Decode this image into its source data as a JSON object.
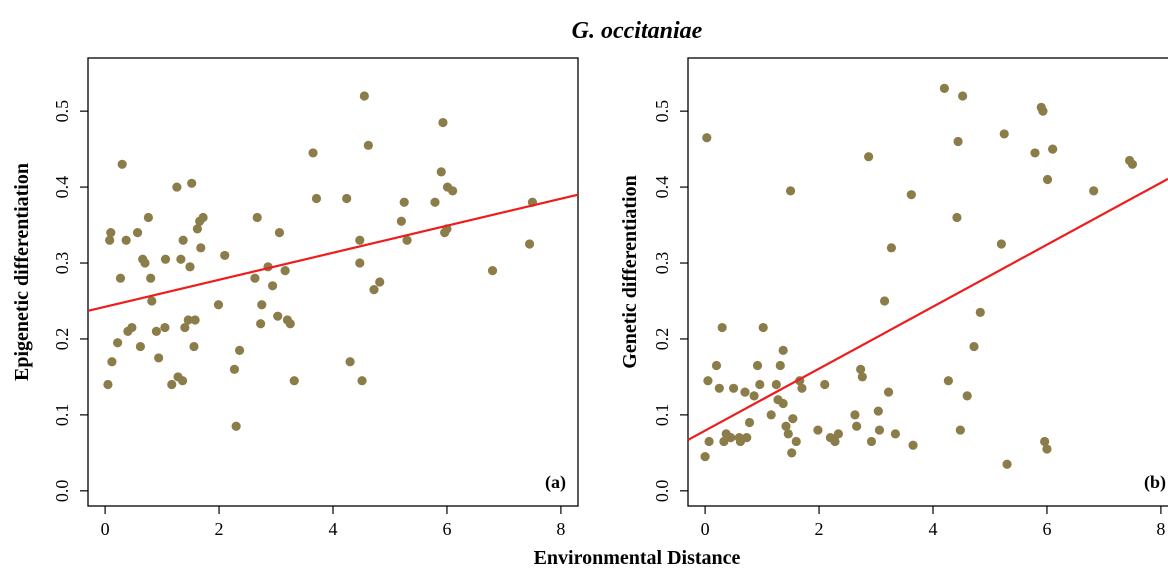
{
  "figure": {
    "title": "G. occitaniae",
    "xlabel": "Environmental Distance",
    "point_color": "#8b7d4a",
    "line_color": "#ee1c1c"
  },
  "chart_data": [
    {
      "type": "scatter",
      "tag": "(a)",
      "ylabel": "Epigenetic differentiation",
      "xlim": [
        -0.3,
        8.3
      ],
      "ylim": [
        -0.02,
        0.57
      ],
      "xticks": [
        "0",
        "2",
        "4",
        "6",
        "8"
      ],
      "yticks": [
        "0.0",
        "0.1",
        "0.2",
        "0.3",
        "0.4",
        "0.5"
      ],
      "regression": {
        "x0": -0.3,
        "y0": 0.237,
        "x1": 8.3,
        "y1": 0.39
      },
      "points": [
        [
          0.05,
          0.14
        ],
        [
          0.08,
          0.33
        ],
        [
          0.1,
          0.34
        ],
        [
          0.12,
          0.17
        ],
        [
          0.22,
          0.195
        ],
        [
          0.27,
          0.28
        ],
        [
          0.3,
          0.43
        ],
        [
          0.37,
          0.33
        ],
        [
          0.4,
          0.21
        ],
        [
          0.47,
          0.215
        ],
        [
          0.57,
          0.34
        ],
        [
          0.62,
          0.19
        ],
        [
          0.66,
          0.305
        ],
        [
          0.7,
          0.3
        ],
        [
          0.76,
          0.36
        ],
        [
          0.8,
          0.28
        ],
        [
          0.82,
          0.25
        ],
        [
          0.9,
          0.21
        ],
        [
          0.94,
          0.175
        ],
        [
          1.05,
          0.215
        ],
        [
          1.06,
          0.305
        ],
        [
          1.17,
          0.14
        ],
        [
          1.26,
          0.4
        ],
        [
          1.28,
          0.15
        ],
        [
          1.33,
          0.305
        ],
        [
          1.37,
          0.33
        ],
        [
          1.36,
          0.145
        ],
        [
          1.4,
          0.215
        ],
        [
          1.46,
          0.225
        ],
        [
          1.49,
          0.295
        ],
        [
          1.52,
          0.405
        ],
        [
          1.56,
          0.19
        ],
        [
          1.58,
          0.225
        ],
        [
          1.62,
          0.345
        ],
        [
          1.66,
          0.355
        ],
        [
          1.68,
          0.32
        ],
        [
          1.72,
          0.36
        ],
        [
          1.99,
          0.245
        ],
        [
          2.1,
          0.31
        ],
        [
          2.27,
          0.16
        ],
        [
          2.3,
          0.085
        ],
        [
          2.36,
          0.185
        ],
        [
          2.63,
          0.28
        ],
        [
          2.67,
          0.36
        ],
        [
          2.73,
          0.22
        ],
        [
          2.75,
          0.245
        ],
        [
          2.86,
          0.295
        ],
        [
          2.94,
          0.27
        ],
        [
          3.03,
          0.23
        ],
        [
          3.06,
          0.34
        ],
        [
          3.16,
          0.29
        ],
        [
          3.2,
          0.225
        ],
        [
          3.25,
          0.22
        ],
        [
          3.32,
          0.145
        ],
        [
          3.65,
          0.445
        ],
        [
          3.71,
          0.385
        ],
        [
          4.24,
          0.385
        ],
        [
          4.3,
          0.17
        ],
        [
          4.47,
          0.3
        ],
        [
          4.47,
          0.33
        ],
        [
          4.51,
          0.145
        ],
        [
          4.55,
          0.52
        ],
        [
          4.62,
          0.455
        ],
        [
          4.72,
          0.265
        ],
        [
          4.82,
          0.275
        ],
        [
          5.2,
          0.355
        ],
        [
          5.25,
          0.38
        ],
        [
          5.3,
          0.33
        ],
        [
          5.79,
          0.38
        ],
        [
          5.9,
          0.42
        ],
        [
          5.93,
          0.485
        ],
        [
          5.96,
          0.34
        ],
        [
          6.0,
          0.345
        ],
        [
          6.01,
          0.4
        ],
        [
          6.1,
          0.395
        ],
        [
          6.8,
          0.29
        ],
        [
          7.45,
          0.325
        ],
        [
          7.5,
          0.38
        ]
      ]
    },
    {
      "type": "scatter",
      "tag": "(b)",
      "ylabel": "Genetic differentiation",
      "xlim": [
        -0.3,
        8.3
      ],
      "ylim": [
        -0.02,
        0.57
      ],
      "xticks": [
        "0",
        "2",
        "4",
        "6",
        "8"
      ],
      "yticks": [
        "0.0",
        "0.1",
        "0.2",
        "0.3",
        "0.4",
        "0.5"
      ],
      "regression": {
        "x0": -0.3,
        "y0": 0.067,
        "x1": 8.3,
        "y1": 0.418
      },
      "points": [
        [
          0.0,
          0.045
        ],
        [
          0.03,
          0.465
        ],
        [
          0.05,
          0.145
        ],
        [
          0.07,
          0.065
        ],
        [
          0.2,
          0.165
        ],
        [
          0.25,
          0.135
        ],
        [
          0.3,
          0.215
        ],
        [
          0.33,
          0.065
        ],
        [
          0.37,
          0.075
        ],
        [
          0.45,
          0.07
        ],
        [
          0.5,
          0.135
        ],
        [
          0.6,
          0.07
        ],
        [
          0.62,
          0.065
        ],
        [
          0.7,
          0.13
        ],
        [
          0.73,
          0.07
        ],
        [
          0.78,
          0.09
        ],
        [
          0.86,
          0.125
        ],
        [
          0.92,
          0.165
        ],
        [
          0.96,
          0.14
        ],
        [
          1.02,
          0.215
        ],
        [
          1.16,
          0.1
        ],
        [
          1.25,
          0.14
        ],
        [
          1.28,
          0.12
        ],
        [
          1.32,
          0.165
        ],
        [
          1.37,
          0.115
        ],
        [
          1.37,
          0.185
        ],
        [
          1.42,
          0.085
        ],
        [
          1.46,
          0.075
        ],
        [
          1.5,
          0.395
        ],
        [
          1.52,
          0.05
        ],
        [
          1.54,
          0.095
        ],
        [
          1.6,
          0.065
        ],
        [
          1.66,
          0.145
        ],
        [
          1.7,
          0.135
        ],
        [
          1.98,
          0.08
        ],
        [
          2.1,
          0.14
        ],
        [
          2.2,
          0.07
        ],
        [
          2.28,
          0.065
        ],
        [
          2.34,
          0.075
        ],
        [
          2.63,
          0.1
        ],
        [
          2.66,
          0.085
        ],
        [
          2.73,
          0.16
        ],
        [
          2.76,
          0.15
        ],
        [
          2.87,
          0.44
        ],
        [
          2.92,
          0.065
        ],
        [
          3.04,
          0.105
        ],
        [
          3.06,
          0.08
        ],
        [
          3.15,
          0.25
        ],
        [
          3.22,
          0.13
        ],
        [
          3.27,
          0.32
        ],
        [
          3.34,
          0.075
        ],
        [
          3.62,
          0.39
        ],
        [
          3.65,
          0.06
        ],
        [
          4.2,
          0.53
        ],
        [
          4.27,
          0.145
        ],
        [
          4.42,
          0.36
        ],
        [
          4.44,
          0.46
        ],
        [
          4.48,
          0.08
        ],
        [
          4.52,
          0.52
        ],
        [
          4.6,
          0.125
        ],
        [
          4.72,
          0.19
        ],
        [
          4.83,
          0.235
        ],
        [
          5.2,
          0.325
        ],
        [
          5.25,
          0.47
        ],
        [
          5.3,
          0.035
        ],
        [
          5.79,
          0.445
        ],
        [
          5.9,
          0.505
        ],
        [
          5.93,
          0.5
        ],
        [
          5.96,
          0.065
        ],
        [
          6.0,
          0.055
        ],
        [
          6.01,
          0.41
        ],
        [
          6.1,
          0.45
        ],
        [
          6.82,
          0.395
        ],
        [
          7.45,
          0.435
        ],
        [
          7.5,
          0.43
        ]
      ]
    }
  ]
}
